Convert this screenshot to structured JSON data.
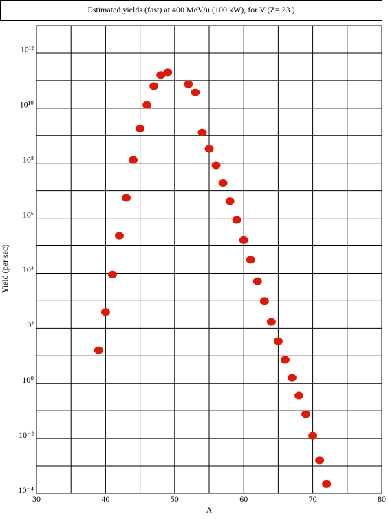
{
  "chart_data": {
    "type": "scatter",
    "title": "Estimated yields (fast) at 400 MeV/u (100 kW), for V (Z= 23 )",
    "xlabel": "A",
    "ylabel": "Yield (per sec)",
    "x": [
      39,
      40,
      41,
      42,
      43,
      44,
      45,
      46,
      47,
      48,
      49,
      52,
      53,
      54,
      55,
      56,
      57,
      58,
      59,
      60,
      61,
      62,
      63,
      64,
      65,
      66,
      67,
      68,
      69,
      70,
      71,
      72
    ],
    "values": [
      16,
      390,
      9000,
      230000,
      5500000,
      130000000,
      1800000000,
      13000000000,
      63000000000,
      160000000000,
      200000000000,
      74000000000,
      37000000000,
      1300000000,
      330000000,
      83000000,
      19000000,
      4200000,
      870000,
      160000,
      31000,
      5100,
      980,
      170,
      34,
      7.2,
      1.6,
      0.36,
      0.076,
      0.0126,
      0.0016,
      0.00022
    ],
    "color": "#dd1a0a",
    "log_y": true,
    "grid": true,
    "xlim": [
      30,
      80
    ],
    "xticks": [
      30,
      40,
      50,
      60,
      70,
      80
    ],
    "xminorticks": [
      35,
      45,
      55,
      65,
      75
    ],
    "ylim": [
      0.0001,
      10000000000000
    ],
    "yticks": [
      {
        "value": 0.0001,
        "label": "10⁻⁴"
      },
      {
        "value": 0.01,
        "label": "10⁻²"
      },
      {
        "value": 1,
        "label": "10⁰"
      },
      {
        "value": 100,
        "label": "10²"
      },
      {
        "value": 10000,
        "label": "10⁴"
      },
      {
        "value": 1000000,
        "label": "10⁶"
      },
      {
        "value": 100000000,
        "label": "10⁸"
      },
      {
        "value": 10000000000,
        "label": "10¹⁰"
      },
      {
        "value": 1000000000000,
        "label": "10¹²"
      }
    ],
    "yminorticks": [
      0.001,
      0.1,
      10,
      1000,
      100000,
      10000000,
      1000000000,
      100000000000
    ]
  }
}
